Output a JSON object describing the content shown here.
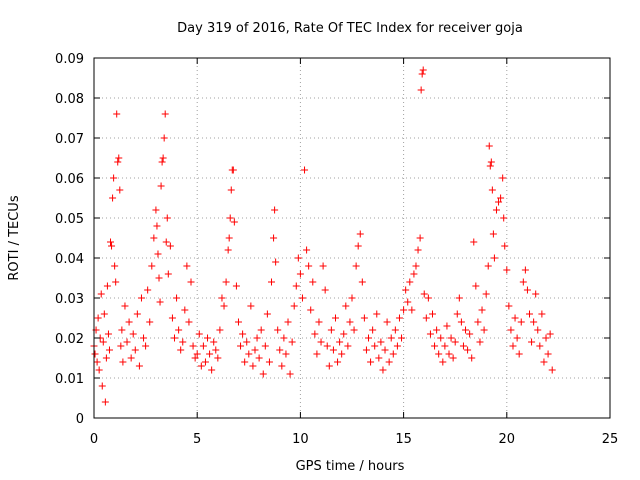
{
  "chart_data": {
    "type": "scatter",
    "title": "Day 319 of 2016, Rate Of TEC Index for receiver goja",
    "xlabel": "GPS time / hours",
    "ylabel": "ROTI / TECUs",
    "xlim": [
      0,
      25
    ],
    "ylim": [
      0,
      0.09
    ],
    "xticks": [
      0,
      5,
      10,
      15,
      20,
      25
    ],
    "xtick_labels": [
      "0",
      "5",
      "10",
      "15",
      "20",
      "25"
    ],
    "yticks": [
      0,
      0.01,
      0.02,
      0.03,
      0.04,
      0.05,
      0.06,
      0.07,
      0.08,
      0.09
    ],
    "ytick_labels": [
      "0",
      "0.01",
      "0.02",
      "0.03",
      "0.04",
      "0.05",
      "0.06",
      "0.07",
      "0.08",
      "0.09"
    ],
    "grid": true,
    "marker": "+",
    "color": "#ff0000",
    "series": [
      {
        "values": [
          [
            0.0,
            0.018
          ],
          [
            0.05,
            0.016
          ],
          [
            0.1,
            0.022
          ],
          [
            0.15,
            0.014
          ],
          [
            0.2,
            0.025
          ],
          [
            0.25,
            0.012
          ],
          [
            0.3,
            0.02
          ],
          [
            0.35,
            0.031
          ],
          [
            0.4,
            0.008
          ],
          [
            0.45,
            0.019
          ],
          [
            0.5,
            0.026
          ],
          [
            0.55,
            0.004
          ],
          [
            0.6,
            0.015
          ],
          [
            0.65,
            0.033
          ],
          [
            0.7,
            0.021
          ],
          [
            0.75,
            0.017
          ],
          [
            0.8,
            0.044
          ],
          [
            0.85,
            0.043
          ],
          [
            0.9,
            0.055
          ],
          [
            0.95,
            0.06
          ],
          [
            1.0,
            0.038
          ],
          [
            1.05,
            0.034
          ],
          [
            1.1,
            0.076
          ],
          [
            1.15,
            0.064
          ],
          [
            1.2,
            0.065
          ],
          [
            1.25,
            0.057
          ],
          [
            1.3,
            0.018
          ],
          [
            1.35,
            0.022
          ],
          [
            1.4,
            0.014
          ],
          [
            1.5,
            0.028
          ],
          [
            1.6,
            0.019
          ],
          [
            1.7,
            0.024
          ],
          [
            1.8,
            0.015
          ],
          [
            1.9,
            0.021
          ],
          [
            2.0,
            0.017
          ],
          [
            2.1,
            0.026
          ],
          [
            2.2,
            0.013
          ],
          [
            2.3,
            0.03
          ],
          [
            2.4,
            0.02
          ],
          [
            2.5,
            0.018
          ],
          [
            2.6,
            0.032
          ],
          [
            2.7,
            0.024
          ],
          [
            2.8,
            0.038
          ],
          [
            2.9,
            0.045
          ],
          [
            3.0,
            0.052
          ],
          [
            3.05,
            0.048
          ],
          [
            3.1,
            0.041
          ],
          [
            3.15,
            0.035
          ],
          [
            3.2,
            0.029
          ],
          [
            3.25,
            0.058
          ],
          [
            3.3,
            0.064
          ],
          [
            3.35,
            0.065
          ],
          [
            3.4,
            0.07
          ],
          [
            3.45,
            0.076
          ],
          [
            3.5,
            0.044
          ],
          [
            3.55,
            0.05
          ],
          [
            3.6,
            0.036
          ],
          [
            3.7,
            0.043
          ],
          [
            3.8,
            0.025
          ],
          [
            3.9,
            0.02
          ],
          [
            4.0,
            0.03
          ],
          [
            4.1,
            0.022
          ],
          [
            4.2,
            0.017
          ],
          [
            4.3,
            0.019
          ],
          [
            4.4,
            0.027
          ],
          [
            4.5,
            0.038
          ],
          [
            4.6,
            0.024
          ],
          [
            4.7,
            0.034
          ],
          [
            4.8,
            0.018
          ],
          [
            4.9,
            0.015
          ],
          [
            5.0,
            0.016
          ],
          [
            5.1,
            0.021
          ],
          [
            5.2,
            0.013
          ],
          [
            5.3,
            0.018
          ],
          [
            5.4,
            0.014
          ],
          [
            5.5,
            0.02
          ],
          [
            5.6,
            0.016
          ],
          [
            5.7,
            0.012
          ],
          [
            5.8,
            0.019
          ],
          [
            5.9,
            0.017
          ],
          [
            6.0,
            0.015
          ],
          [
            6.1,
            0.022
          ],
          [
            6.2,
            0.03
          ],
          [
            6.3,
            0.028
          ],
          [
            6.4,
            0.034
          ],
          [
            6.5,
            0.042
          ],
          [
            6.55,
            0.045
          ],
          [
            6.6,
            0.05
          ],
          [
            6.65,
            0.057
          ],
          [
            6.7,
            0.062
          ],
          [
            6.75,
            0.062
          ],
          [
            6.8,
            0.049
          ],
          [
            6.9,
            0.033
          ],
          [
            7.0,
            0.024
          ],
          [
            7.1,
            0.018
          ],
          [
            7.2,
            0.021
          ],
          [
            7.3,
            0.014
          ],
          [
            7.4,
            0.019
          ],
          [
            7.5,
            0.016
          ],
          [
            7.6,
            0.028
          ],
          [
            7.7,
            0.013
          ],
          [
            7.8,
            0.017
          ],
          [
            7.9,
            0.02
          ],
          [
            8.0,
            0.015
          ],
          [
            8.1,
            0.022
          ],
          [
            8.2,
            0.011
          ],
          [
            8.3,
            0.018
          ],
          [
            8.4,
            0.026
          ],
          [
            8.5,
            0.014
          ],
          [
            8.6,
            0.034
          ],
          [
            8.7,
            0.045
          ],
          [
            8.75,
            0.052
          ],
          [
            8.8,
            0.039
          ],
          [
            8.9,
            0.022
          ],
          [
            9.0,
            0.017
          ],
          [
            9.1,
            0.013
          ],
          [
            9.2,
            0.02
          ],
          [
            9.3,
            0.016
          ],
          [
            9.4,
            0.024
          ],
          [
            9.5,
            0.011
          ],
          [
            9.6,
            0.019
          ],
          [
            9.7,
            0.028
          ],
          [
            9.8,
            0.033
          ],
          [
            9.9,
            0.04
          ],
          [
            10.0,
            0.036
          ],
          [
            10.1,
            0.03
          ],
          [
            10.2,
            0.062
          ],
          [
            10.3,
            0.042
          ],
          [
            10.4,
            0.038
          ],
          [
            10.5,
            0.027
          ],
          [
            10.6,
            0.034
          ],
          [
            10.7,
            0.021
          ],
          [
            10.8,
            0.016
          ],
          [
            10.9,
            0.024
          ],
          [
            11.0,
            0.019
          ],
          [
            11.1,
            0.038
          ],
          [
            11.2,
            0.032
          ],
          [
            11.3,
            0.018
          ],
          [
            11.4,
            0.013
          ],
          [
            11.5,
            0.022
          ],
          [
            11.6,
            0.017
          ],
          [
            11.7,
            0.025
          ],
          [
            11.8,
            0.014
          ],
          [
            11.9,
            0.019
          ],
          [
            12.0,
            0.016
          ],
          [
            12.1,
            0.021
          ],
          [
            12.2,
            0.028
          ],
          [
            12.3,
            0.018
          ],
          [
            12.4,
            0.024
          ],
          [
            12.5,
            0.03
          ],
          [
            12.6,
            0.022
          ],
          [
            12.7,
            0.038
          ],
          [
            12.8,
            0.043
          ],
          [
            12.9,
            0.046
          ],
          [
            13.0,
            0.034
          ],
          [
            13.1,
            0.025
          ],
          [
            13.2,
            0.017
          ],
          [
            13.3,
            0.02
          ],
          [
            13.4,
            0.014
          ],
          [
            13.5,
            0.022
          ],
          [
            13.6,
            0.018
          ],
          [
            13.7,
            0.026
          ],
          [
            13.8,
            0.015
          ],
          [
            13.9,
            0.019
          ],
          [
            14.0,
            0.012
          ],
          [
            14.1,
            0.017
          ],
          [
            14.2,
            0.024
          ],
          [
            14.3,
            0.014
          ],
          [
            14.4,
            0.02
          ],
          [
            14.5,
            0.016
          ],
          [
            14.6,
            0.022
          ],
          [
            14.7,
            0.018
          ],
          [
            14.8,
            0.025
          ],
          [
            14.9,
            0.02
          ],
          [
            15.0,
            0.027
          ],
          [
            15.1,
            0.032
          ],
          [
            15.2,
            0.029
          ],
          [
            15.3,
            0.034
          ],
          [
            15.4,
            0.027
          ],
          [
            15.5,
            0.036
          ],
          [
            15.6,
            0.038
          ],
          [
            15.7,
            0.042
          ],
          [
            15.8,
            0.045
          ],
          [
            15.85,
            0.082
          ],
          [
            15.9,
            0.086
          ],
          [
            15.95,
            0.087
          ],
          [
            16.0,
            0.031
          ],
          [
            16.1,
            0.025
          ],
          [
            16.2,
            0.03
          ],
          [
            16.3,
            0.021
          ],
          [
            16.4,
            0.026
          ],
          [
            16.5,
            0.018
          ],
          [
            16.6,
            0.022
          ],
          [
            16.7,
            0.016
          ],
          [
            16.8,
            0.02
          ],
          [
            16.9,
            0.014
          ],
          [
            17.0,
            0.018
          ],
          [
            17.1,
            0.023
          ],
          [
            17.2,
            0.016
          ],
          [
            17.3,
            0.02
          ],
          [
            17.4,
            0.015
          ],
          [
            17.5,
            0.019
          ],
          [
            17.6,
            0.026
          ],
          [
            17.7,
            0.03
          ],
          [
            17.8,
            0.024
          ],
          [
            17.9,
            0.018
          ],
          [
            18.0,
            0.022
          ],
          [
            18.1,
            0.017
          ],
          [
            18.2,
            0.021
          ],
          [
            18.3,
            0.015
          ],
          [
            18.4,
            0.044
          ],
          [
            18.5,
            0.033
          ],
          [
            18.6,
            0.024
          ],
          [
            18.7,
            0.019
          ],
          [
            18.8,
            0.027
          ],
          [
            18.9,
            0.022
          ],
          [
            19.0,
            0.031
          ],
          [
            19.1,
            0.038
          ],
          [
            19.15,
            0.068
          ],
          [
            19.2,
            0.063
          ],
          [
            19.25,
            0.064
          ],
          [
            19.3,
            0.057
          ],
          [
            19.35,
            0.046
          ],
          [
            19.4,
            0.04
          ],
          [
            19.5,
            0.052
          ],
          [
            19.6,
            0.054
          ],
          [
            19.7,
            0.055
          ],
          [
            19.8,
            0.06
          ],
          [
            19.85,
            0.05
          ],
          [
            19.9,
            0.043
          ],
          [
            20.0,
            0.037
          ],
          [
            20.1,
            0.028
          ],
          [
            20.2,
            0.022
          ],
          [
            20.3,
            0.018
          ],
          [
            20.4,
            0.025
          ],
          [
            20.5,
            0.02
          ],
          [
            20.6,
            0.016
          ],
          [
            20.7,
            0.024
          ],
          [
            20.8,
            0.034
          ],
          [
            20.9,
            0.037
          ],
          [
            21.0,
            0.032
          ],
          [
            21.1,
            0.026
          ],
          [
            21.2,
            0.019
          ],
          [
            21.3,
            0.024
          ],
          [
            21.4,
            0.031
          ],
          [
            21.5,
            0.022
          ],
          [
            21.6,
            0.018
          ],
          [
            21.7,
            0.026
          ],
          [
            21.8,
            0.014
          ],
          [
            21.9,
            0.02
          ],
          [
            22.0,
            0.016
          ],
          [
            22.1,
            0.021
          ],
          [
            22.2,
            0.012
          ]
        ]
      }
    ]
  }
}
